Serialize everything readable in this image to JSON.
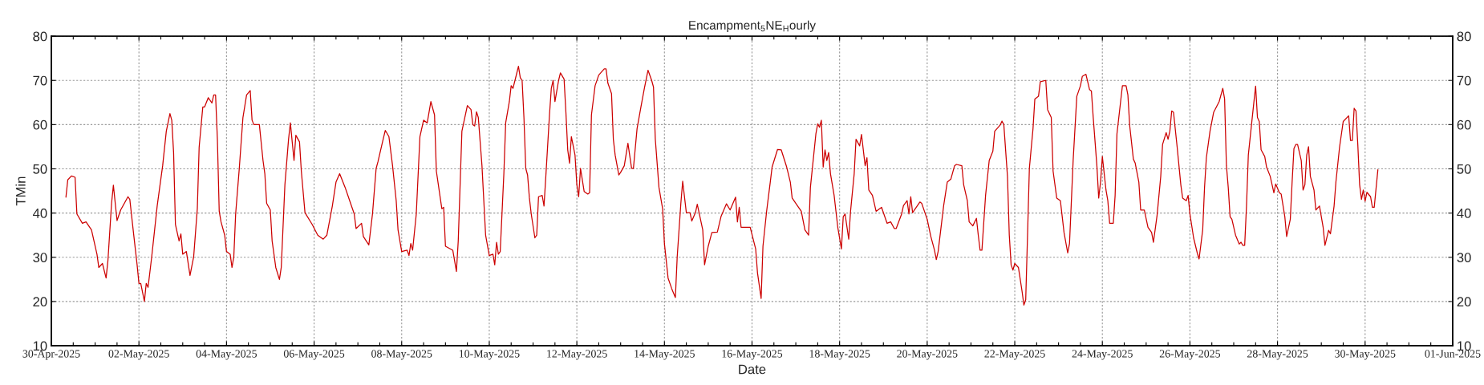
{
  "chart_data": {
    "type": "line",
    "title": "Encampment$_{5}$NE$_{H}$ourly",
    "xlabel": "Date",
    "ylabel": "TMin",
    "xlim": [
      "2025-04-30",
      "2025-06-01"
    ],
    "xticks": [
      {
        "value": "2025-04-30",
        "label": "30-Apr-2025"
      },
      {
        "value": "2025-04-30T12:00",
        "label": null
      },
      {
        "value": "2025-05-01",
        "label": null
      },
      {
        "value": "2025-05-01T12:00",
        "label": null
      },
      {
        "value": "2025-05-02",
        "label": "02-May-2025"
      },
      {
        "value": "2025-05-02T12:00",
        "label": null
      },
      {
        "value": "2025-05-03",
        "label": null
      },
      {
        "value": "2025-05-03T12:00",
        "label": null
      },
      {
        "value": "2025-05-04",
        "label": "04-May-2025"
      },
      {
        "value": "2025-05-04T12:00",
        "label": null
      },
      {
        "value": "2025-05-05",
        "label": null
      },
      {
        "value": "2025-05-05T12:00",
        "label": null
      },
      {
        "value": "2025-05-06",
        "label": "06-May-2025"
      },
      {
        "value": "2025-05-06T12:00",
        "label": null
      },
      {
        "value": "2025-05-07",
        "label": null
      },
      {
        "value": "2025-05-07T12:00",
        "label": null
      },
      {
        "value": "2025-05-08",
        "label": "08-May-2025"
      },
      {
        "value": "2025-05-08T12:00",
        "label": null
      },
      {
        "value": "2025-05-09",
        "label": null
      },
      {
        "value": "2025-05-09T12:00",
        "label": null
      },
      {
        "value": "2025-05-10",
        "label": "10-May-2025"
      },
      {
        "value": "2025-05-10T12:00",
        "label": null
      },
      {
        "value": "2025-05-11",
        "label": null
      },
      {
        "value": "2025-05-11T12:00",
        "label": null
      },
      {
        "value": "2025-05-12",
        "label": "12-May-2025"
      },
      {
        "value": "2025-05-12T12:00",
        "label": null
      },
      {
        "value": "2025-05-13",
        "label": null
      },
      {
        "value": "2025-05-13T12:00",
        "label": null
      },
      {
        "value": "2025-05-14",
        "label": "14-May-2025"
      },
      {
        "value": "2025-05-14T12:00",
        "label": null
      },
      {
        "value": "2025-05-15",
        "label": null
      },
      {
        "value": "2025-05-15T12:00",
        "label": null
      },
      {
        "value": "2025-05-16",
        "label": "16-May-2025"
      },
      {
        "value": "2025-05-16T12:00",
        "label": null
      },
      {
        "value": "2025-05-17",
        "label": null
      },
      {
        "value": "2025-05-17T12:00",
        "label": null
      },
      {
        "value": "2025-05-18",
        "label": "18-May-2025"
      },
      {
        "value": "2025-05-18T12:00",
        "label": null
      },
      {
        "value": "2025-05-19",
        "label": null
      },
      {
        "value": "2025-05-19T12:00",
        "label": null
      },
      {
        "value": "2025-05-20",
        "label": "20-May-2025"
      },
      {
        "value": "2025-05-20T12:00",
        "label": null
      },
      {
        "value": "2025-05-21",
        "label": null
      },
      {
        "value": "2025-05-21T12:00",
        "label": null
      },
      {
        "value": "2025-05-22",
        "label": "22-May-2025"
      },
      {
        "value": "2025-05-22T12:00",
        "label": null
      },
      {
        "value": "2025-05-23",
        "label": null
      },
      {
        "value": "2025-05-23T12:00",
        "label": null
      },
      {
        "value": "2025-05-24",
        "label": "24-May-2025"
      },
      {
        "value": "2025-05-24T12:00",
        "label": null
      },
      {
        "value": "2025-05-25",
        "label": null
      },
      {
        "value": "2025-05-25T12:00",
        "label": null
      },
      {
        "value": "2025-05-26",
        "label": "26-May-2025"
      },
      {
        "value": "2025-05-26T12:00",
        "label": null
      },
      {
        "value": "2025-05-27",
        "label": null
      },
      {
        "value": "2025-05-27T12:00",
        "label": null
      },
      {
        "value": "2025-05-28",
        "label": "28-May-2025"
      },
      {
        "value": "2025-05-28T12:00",
        "label": null
      },
      {
        "value": "2025-05-29",
        "label": null
      },
      {
        "value": "2025-05-29T12:00",
        "label": null
      },
      {
        "value": "2025-05-30",
        "label": "30-May-2025"
      },
      {
        "value": "2025-05-30T12:00",
        "label": null
      },
      {
        "value": "2025-05-31",
        "label": null
      },
      {
        "value": "2025-05-31T12:00",
        "label": null
      },
      {
        "value": "2025-06-01",
        "label": "01-Jun-2025"
      }
    ],
    "ylim": [
      10,
      80
    ],
    "yticks": [
      10,
      20,
      30,
      40,
      50,
      60,
      70,
      80
    ],
    "y2lim": [
      10,
      80
    ],
    "y2ticks": [
      10,
      20,
      30,
      40,
      50,
      60,
      70,
      80
    ],
    "grid": true,
    "marker": "none",
    "line_style": "solid",
    "x": [
      "2025-04-30T08:00",
      "2025-04-30T09:00",
      "2025-04-30T11:00",
      "2025-04-30T13:00",
      "2025-04-30T14:00",
      "2025-04-30T17:00",
      "2025-04-30T19:00",
      "2025-04-30T22:00",
      "2025-05-01T01:00",
      "2025-05-01T02:00",
      "2025-05-01T04:00",
      "2025-05-01T06:00",
      "2025-05-01T07:00",
      "2025-05-01T09:00",
      "2025-05-01T10:00",
      "2025-05-01T12:00",
      "2025-05-01T14:00",
      "2025-05-01T18:00",
      "2025-05-01T19:00",
      "2025-05-01T21:00",
      "2025-05-01T23:00",
      "2025-05-02T00:00",
      "2025-05-02T01:00",
      "2025-05-02T03:00",
      "2025-05-02T04:00",
      "2025-05-02T05:00",
      "2025-05-02T07:00",
      "2025-05-02T10:00",
      "2025-05-02T13:00",
      "2025-05-02T15:00",
      "2025-05-02T17:00",
      "2025-05-02T18:00",
      "2025-05-02T19:00",
      "2025-05-02T20:00",
      "2025-05-02T22:00",
      "2025-05-02T23:00",
      "2025-05-03T00:00",
      "2025-05-03T02:00",
      "2025-05-03T04:00",
      "2025-05-03T06:00",
      "2025-05-03T08:00",
      "2025-05-03T09:00",
      "2025-05-03T11:00",
      "2025-05-03T12:00",
      "2025-05-03T14:00",
      "2025-05-03T16:00",
      "2025-05-03T17:00",
      "2025-05-03T18:00",
      "2025-05-03T19:00",
      "2025-05-03T20:00",
      "2025-05-03T21:00",
      "2025-05-03T23:00",
      "2025-05-04T00:00",
      "2025-05-04T02:00",
      "2025-05-04T03:00",
      "2025-05-04T04:00",
      "2025-05-04T05:00",
      "2025-05-04T07:00",
      "2025-05-04T09:00",
      "2025-05-04T11:00",
      "2025-05-04T13:00",
      "2025-05-04T14:00",
      "2025-05-04T15:00",
      "2025-05-04T18:00",
      "2025-05-04T20:00",
      "2025-05-04T21:00",
      "2025-05-04T22:00",
      "2025-05-05T00:00",
      "2025-05-05T01:00",
      "2025-05-05T03:00",
      "2025-05-05T05:00",
      "2025-05-05T06:00",
      "2025-05-05T08:00",
      "2025-05-05T10:00",
      "2025-05-05T11:00",
      "2025-05-05T12:00",
      "2025-05-05T13:00",
      "2025-05-05T14:00",
      "2025-05-05T16:00",
      "2025-05-05T17:00",
      "2025-05-05T19:00",
      "2025-05-05T23:00",
      "2025-05-06T02:00",
      "2025-05-06T05:00",
      "2025-05-06T07:00",
      "2025-05-06T10:00",
      "2025-05-06T12:00",
      "2025-05-06T14:00",
      "2025-05-06T17:00",
      "2025-05-06T20:00",
      "2025-05-06T22:00",
      "2025-05-06T23:00",
      "2025-05-07T02:00",
      "2025-05-07T03:00",
      "2025-05-07T06:00",
      "2025-05-07T08:00",
      "2025-05-07T10:00",
      "2025-05-07T11:00",
      "2025-05-07T13:00",
      "2025-05-07T15:00",
      "2025-05-07T17:00",
      "2025-05-07T19:00",
      "2025-05-07T21:00",
      "2025-05-07T22:00",
      "2025-05-08T00:00",
      "2025-05-08T03:00",
      "2025-05-08T04:00",
      "2025-05-08T05:00",
      "2025-05-08T06:00",
      "2025-05-08T08:00",
      "2025-05-08T10:00",
      "2025-05-08T12:00",
      "2025-05-08T14:00",
      "2025-05-08T16:00",
      "2025-05-08T18:00",
      "2025-05-08T19:00",
      "2025-05-08T22:00",
      "2025-05-08T23:00",
      "2025-05-09T00:00",
      "2025-05-09T04:00",
      "2025-05-09T06:00",
      "2025-05-09T07:00",
      "2025-05-09T09:00",
      "2025-05-09T12:00",
      "2025-05-09T14:00",
      "2025-05-09T15:00",
      "2025-05-09T16:00",
      "2025-05-09T17:00",
      "2025-05-09T18:00",
      "2025-05-09T20:00",
      "2025-05-09T22:00",
      "2025-05-10T00:00",
      "2025-05-10T02:00",
      "2025-05-10T03:00",
      "2025-05-10T04:00",
      "2025-05-10T05:00",
      "2025-05-10T06:00",
      "2025-05-10T08:00",
      "2025-05-10T09:00",
      "2025-05-10T11:00",
      "2025-05-10T12:00",
      "2025-05-10T13:00",
      "2025-05-10T15:00",
      "2025-05-10T16:00",
      "2025-05-10T17:00",
      "2025-05-10T18:00",
      "2025-05-10T19:00",
      "2025-05-10T20:00",
      "2025-05-10T21:00",
      "2025-05-10T22:00",
      "2025-05-10T23:00",
      "2025-05-11T01:00",
      "2025-05-11T02:00",
      "2025-05-11T03:00",
      "2025-05-11T05:00",
      "2025-05-11T06:00",
      "2025-05-11T07:00",
      "2025-05-11T09:00",
      "2025-05-11T10:00",
      "2025-05-11T11:00",
      "2025-05-11T12:00",
      "2025-05-11T14:00",
      "2025-05-11T15:00",
      "2025-05-11T17:00",
      "2025-05-11T18:00",
      "2025-05-11T19:00",
      "2025-05-11T20:00",
      "2025-05-11T21:00",
      "2025-05-11T23:00",
      "2025-05-12T00:00",
      "2025-05-12T01:00",
      "2025-05-12T02:00",
      "2025-05-12T04:00",
      "2025-05-12T06:00",
      "2025-05-12T07:00",
      "2025-05-12T08:00",
      "2025-05-12T10:00",
      "2025-05-12T12:00",
      "2025-05-12T15:00",
      "2025-05-12T16:00",
      "2025-05-12T17:00",
      "2025-05-12T19:00",
      "2025-05-12T20:00",
      "2025-05-12T21:00",
      "2025-05-12T23:00",
      "2025-05-13T00:00",
      "2025-05-13T02:00",
      "2025-05-13T04:00",
      "2025-05-13T06:00",
      "2025-05-13T07:00",
      "2025-05-13T09:00",
      "2025-05-13T11:00",
      "2025-05-13T13:00",
      "2025-05-13T15:00",
      "2025-05-13T17:00",
      "2025-05-13T18:00",
      "2025-05-13T19:00",
      "2025-05-13T21:00",
      "2025-05-13T23:00",
      "2025-05-14T00:00",
      "2025-05-14T02:00",
      "2025-05-14T04:00",
      "2025-05-14T06:00",
      "2025-05-14T07:00",
      "2025-05-14T09:00",
      "2025-05-14T10:00",
      "2025-05-14T12:00",
      "2025-05-14T14:00",
      "2025-05-14T15:00",
      "2025-05-14T17:00",
      "2025-05-14T18:00",
      "2025-05-14T21:00",
      "2025-05-14T22:00",
      "2025-05-15T00:00",
      "2025-05-15T02:00",
      "2025-05-15T05:00",
      "2025-05-15T07:00",
      "2025-05-15T10:00",
      "2025-05-15T12:00",
      "2025-05-15T15:00",
      "2025-05-15T16:00",
      "2025-05-15T17:00",
      "2025-05-15T18:00",
      "2025-05-15T21:00",
      "2025-05-15T23:00",
      "2025-05-16T02:00",
      "2025-05-16T03:00",
      "2025-05-16T05:00",
      "2025-05-16T06:00",
      "2025-05-16T08:00",
      "2025-05-16T10:00",
      "2025-05-16T11:00",
      "2025-05-16T14:00",
      "2025-05-16T16:00",
      "2025-05-16T19:00",
      "2025-05-16T21:00",
      "2025-05-16T22:00",
      "2025-05-17T01:00",
      "2025-05-17T03:00",
      "2025-05-17T05:00",
      "2025-05-17T07:00",
      "2025-05-17T08:00",
      "2025-05-17T11:00",
      "2025-05-17T12:00",
      "2025-05-17T13:00",
      "2025-05-17T14:00",
      "2025-05-17T15:00",
      "2025-05-17T16:00",
      "2025-05-17T17:00",
      "2025-05-17T18:00",
      "2025-05-17T19:00",
      "2025-05-17T21:00",
      "2025-05-17T23:00",
      "2025-05-18T01:00",
      "2025-05-18T02:00",
      "2025-05-18T03:00",
      "2025-05-18T05:00",
      "2025-05-18T06:00",
      "2025-05-18T08:00",
      "2025-05-18T09:00",
      "2025-05-18T11:00",
      "2025-05-18T12:00",
      "2025-05-18T14:00",
      "2025-05-18T15:00",
      "2025-05-18T16:00",
      "2025-05-18T18:00",
      "2025-05-18T20:00",
      "2025-05-18T23:00",
      "2025-05-19T02:00",
      "2025-05-19T04:00",
      "2025-05-19T06:00",
      "2025-05-19T07:00",
      "2025-05-19T10:00",
      "2025-05-19T11:00",
      "2025-05-19T13:00",
      "2025-05-19T14:00",
      "2025-05-19T15:00",
      "2025-05-19T16:00",
      "2025-05-19T20:00",
      "2025-05-19T21:00",
      "2025-05-20T00:00",
      "2025-05-20T02:00",
      "2025-05-20T04:00",
      "2025-05-20T05:00",
      "2025-05-20T06:00",
      "2025-05-20T09:00",
      "2025-05-20T11:00",
      "2025-05-20T13:00",
      "2025-05-20T15:00",
      "2025-05-20T16:00",
      "2025-05-20T19:00",
      "2025-05-20T20:00",
      "2025-05-20T22:00",
      "2025-05-20T23:00",
      "2025-05-21T01:00",
      "2025-05-21T03:00",
      "2025-05-21T04:00",
      "2025-05-21T05:00",
      "2025-05-21T06:00",
      "2025-05-21T08:00",
      "2025-05-21T10:00",
      "2025-05-21T12:00",
      "2025-05-21T13:00",
      "2025-05-21T16:00",
      "2025-05-21T17:00",
      "2025-05-21T18:00",
      "2025-05-21T20:00",
      "2025-05-21T21:00",
      "2025-05-21T22:00",
      "2025-05-21T23:00",
      "2025-05-22T00:00",
      "2025-05-22T02:00",
      "2025-05-22T04:00",
      "2025-05-22T05:00",
      "2025-05-22T06:00",
      "2025-05-22T07:00",
      "2025-05-22T08:00",
      "2025-05-22T10:00",
      "2025-05-22T11:00",
      "2025-05-22T13:00",
      "2025-05-22T14:00",
      "2025-05-22T17:00",
      "2025-05-22T18:00",
      "2025-05-22T20:00",
      "2025-05-22T21:00",
      "2025-05-22T23:00",
      "2025-05-23T01:00",
      "2025-05-23T03:00",
      "2025-05-23T05:00",
      "2025-05-23T06:00",
      "2025-05-23T08:00",
      "2025-05-23T10:00",
      "2025-05-23T12:00",
      "2025-05-23T13:00",
      "2025-05-23T15:00",
      "2025-05-23T17:00",
      "2025-05-23T18:00",
      "2025-05-23T19:00",
      "2025-05-23T21:00",
      "2025-05-23T22:00",
      "2025-05-23T23:00",
      "2025-05-24T00:00",
      "2025-05-24T02:00",
      "2025-05-24T03:00",
      "2025-05-24T04:00",
      "2025-05-24T06:00",
      "2025-05-24T07:00",
      "2025-05-24T08:00",
      "2025-05-24T10:00",
      "2025-05-24T11:00",
      "2025-05-24T13:00",
      "2025-05-24T14:00",
      "2025-05-24T15:00",
      "2025-05-24T17:00",
      "2025-05-24T18:00",
      "2025-05-24T20:00",
      "2025-05-24T21:00",
      "2025-05-24T23:00",
      "2025-05-25T01:00",
      "2025-05-25T03:00",
      "2025-05-25T04:00",
      "2025-05-25T06:00",
      "2025-05-25T08:00",
      "2025-05-25T09:00",
      "2025-05-25T11:00",
      "2025-05-25T12:00",
      "2025-05-25T13:00",
      "2025-05-25T14:00",
      "2025-05-25T15:00",
      "2025-05-25T17:00",
      "2025-05-25T19:00",
      "2025-05-25T20:00",
      "2025-05-25T22:00",
      "2025-05-25T23:00",
      "2025-05-26T00:00",
      "2025-05-26T02:00",
      "2025-05-26T04:00",
      "2025-05-26T05:00",
      "2025-05-26T07:00",
      "2025-05-26T08:00",
      "2025-05-26T09:00",
      "2025-05-26T11:00",
      "2025-05-26T13:00",
      "2025-05-26T16:00",
      "2025-05-26T18:00",
      "2025-05-26T19:00",
      "2025-05-26T20:00",
      "2025-05-26T21:00",
      "2025-05-26T22:00",
      "2025-05-26T23:00",
      "2025-05-27T01:00",
      "2025-05-27T03:00",
      "2025-05-27T04:00",
      "2025-05-27T05:00",
      "2025-05-27T06:00",
      "2025-05-27T07:00",
      "2025-05-27T08:00",
      "2025-05-27T10:00",
      "2025-05-27T11:00",
      "2025-05-27T12:00",
      "2025-05-27T13:00",
      "2025-05-27T14:00",
      "2025-05-27T15:00",
      "2025-05-27T17:00",
      "2025-05-27T18:00",
      "2025-05-27T20:00",
      "2025-05-27T22:00",
      "2025-05-27T23:00",
      "2025-05-28T01:00",
      "2025-05-28T02:00",
      "2025-05-28T04:00",
      "2025-05-28T05:00",
      "2025-05-28T07:00",
      "2025-05-28T08:00",
      "2025-05-28T09:00",
      "2025-05-28T10:00",
      "2025-05-28T11:00",
      "2025-05-28T13:00",
      "2025-05-28T14:00",
      "2025-05-28T15:00",
      "2025-05-28T16:00",
      "2025-05-28T17:00",
      "2025-05-28T18:00",
      "2025-05-28T20:00",
      "2025-05-28T21:00",
      "2025-05-28T23:00",
      "2025-05-29T01:00",
      "2025-05-29T02:00",
      "2025-05-29T04:00",
      "2025-05-29T05:00",
      "2025-05-29T07:00",
      "2025-05-29T08:00",
      "2025-05-29T10:00",
      "2025-05-29T12:00",
      "2025-05-29T15:00",
      "2025-05-29T16:00",
      "2025-05-29T17:00",
      "2025-05-29T18:00",
      "2025-05-29T19:00",
      "2025-05-29T20:00",
      "2025-05-29T21:00",
      "2025-05-29T22:00",
      "2025-05-29T23:00",
      "2025-05-30T00:00",
      "2025-05-30T01:00",
      "2025-05-30T03:00",
      "2025-05-30T04:00",
      "2025-05-30T05:00",
      "2025-05-30T07:00"
    ],
    "series": [
      {
        "color": "#cc0000",
        "values": [
          43.6,
          47.5,
          48.4,
          48.1,
          39.8,
          37.7,
          38.0,
          36.2,
          30.7,
          27.7,
          28.6,
          25.3,
          29.2,
          42.2,
          46.3,
          38.3,
          40.7,
          43.7,
          43.1,
          35.6,
          28.3,
          24.1,
          24.1,
          20.0,
          24.1,
          23.2,
          30.1,
          41.6,
          50.7,
          58.5,
          62.5,
          61.0,
          53.7,
          37.4,
          33.7,
          35.3,
          30.7,
          31.3,
          25.9,
          30.1,
          41.0,
          54.9,
          64.0,
          64.0,
          66.1,
          64.9,
          66.7,
          66.7,
          56.7,
          40.4,
          38.0,
          35.0,
          31.3,
          30.7,
          27.7,
          30.1,
          39.8,
          50.1,
          61.6,
          66.7,
          67.7,
          61.0,
          60.0,
          60.0,
          51.9,
          48.9,
          42.2,
          40.7,
          33.7,
          27.7,
          25.0,
          27.7,
          46.4,
          56.7,
          60.4,
          56.1,
          51.9,
          57.6,
          56.1,
          49.5,
          40.1,
          37.4,
          35.0,
          34.1,
          35.0,
          41.6,
          47.0,
          48.9,
          45.8,
          42.2,
          39.8,
          36.5,
          37.7,
          34.7,
          32.8,
          39.8,
          50.1,
          51.6,
          55.2,
          58.7,
          57.3,
          50.7,
          42.8,
          36.2,
          31.3,
          31.6,
          30.4,
          33.1,
          31.6,
          39.8,
          57.3,
          61.0,
          60.4,
          65.2,
          62.2,
          49.5,
          41.0,
          41.3,
          32.5,
          31.6,
          26.8,
          33.7,
          58.5,
          64.3,
          63.4,
          60.0,
          59.7,
          62.9,
          61.6,
          50.7,
          35.0,
          30.4,
          30.7,
          28.3,
          33.4,
          30.7,
          31.3,
          48.9,
          60.4,
          65.2,
          68.8,
          68.2,
          71.5,
          73.2,
          70.6,
          70.0,
          61.6,
          50.1,
          48.6,
          43.4,
          39.8,
          34.4,
          35.0,
          43.7,
          44.0,
          41.6,
          48.3,
          62.2,
          68.2,
          70.0,
          65.2,
          70.0,
          71.7,
          70.3,
          62.8,
          54.3,
          51.3,
          57.3,
          53.1,
          46.4,
          43.7,
          50.1,
          44.9,
          44.3,
          44.6,
          62.2,
          68.8,
          71.2,
          72.6,
          72.6,
          69.4,
          67.0,
          56.7,
          53.1,
          48.6,
          49.2,
          50.7,
          55.8,
          50.1,
          50.1,
          59.1,
          63.7,
          68.2,
          72.3,
          70.0,
          68.5,
          56.7,
          45.8,
          41.0,
          33.1,
          25.3,
          22.9,
          20.9,
          30.1,
          42.2,
          47.2,
          40.1,
          40.1,
          38.2,
          40.1,
          42.0,
          36.2,
          28.3,
          32.5,
          35.6,
          35.7,
          39.2,
          42.1,
          40.7,
          43.6,
          38.0,
          41.3,
          36.8,
          36.8,
          36.8,
          31.9,
          26.5,
          20.7,
          32.5,
          40.4,
          47.0,
          50.4,
          54.4,
          54.3,
          50.4,
          47.0,
          43.4,
          41.6,
          40.4,
          36.2,
          35.0,
          45.8,
          57.9,
          60.2,
          59.4,
          61.0,
          50.4,
          54.3,
          51.9,
          53.7,
          48.9,
          44.0,
          36.8,
          31.9,
          39.2,
          39.8,
          34.1,
          40.4,
          48.9,
          56.7,
          55.2,
          57.8,
          50.7,
          52.5,
          45.2,
          44.0,
          40.4,
          41.3,
          37.7,
          38.0,
          36.5,
          36.5,
          39.8,
          41.7,
          42.8,
          39.8,
          43.7,
          40.1,
          42.5,
          42.2,
          38.6,
          34.7,
          31.6,
          29.5,
          31.3,
          41.6,
          47.0,
          47.7,
          50.7,
          51.0,
          50.7,
          46.4,
          42.8,
          38.0,
          37.1,
          38.8,
          35.0,
          31.6,
          31.6,
          44.0,
          51.9,
          54.0,
          58.5,
          59.9,
          60.8,
          60.0,
          48.3,
          35.0,
          28.3,
          27.1,
          28.6,
          27.7,
          22.3,
          19.2,
          20.4,
          35.0,
          50.1,
          59.1,
          65.8,
          66.4,
          69.7,
          70.0,
          63.4,
          61.6,
          49.5,
          43.4,
          42.8,
          35.6,
          31.0,
          33.1,
          51.9,
          66.4,
          68.8,
          70.9,
          71.4,
          67.9,
          67.6,
          61.6,
          50.7,
          43.4,
          47.0,
          52.8,
          45.2,
          42.8,
          37.7,
          37.7,
          44.0,
          57.9,
          65.2,
          68.8,
          68.8,
          66.7,
          59.7,
          52.2,
          51.3,
          47.0,
          40.7,
          40.7,
          36.8,
          35.6,
          33.4,
          39.5,
          48.3,
          55.5,
          58.2,
          56.7,
          58.5,
          63.1,
          62.8,
          54.9,
          46.4,
          43.4,
          42.8,
          44.0,
          39.8,
          34.4,
          31.0,
          29.6,
          36.2,
          45.8,
          52.5,
          58.5,
          62.8,
          65.2,
          68.2,
          65.8,
          50.7,
          45.8,
          39.2,
          38.6,
          35.0,
          33.0,
          33.4,
          32.7,
          32.7,
          41.6,
          53.1,
          61.0,
          64.9,
          68.7,
          61.6,
          60.7,
          54.3,
          52.8,
          50.4,
          48.3,
          44.6,
          46.6,
          44.6,
          44.3,
          39.2,
          34.7,
          38.6,
          47.0,
          54.6,
          55.5,
          55.5,
          51.9,
          45.2,
          46.4,
          53.1,
          55.0,
          48.3,
          45.2,
          40.7,
          41.6,
          36.8,
          32.7,
          36.1,
          35.3,
          41.6,
          47.0,
          54.9,
          60.7,
          62.0,
          56.4,
          56.4,
          63.7,
          63.1,
          55.5,
          46.4,
          43.1,
          45.2,
          42.7,
          44.7,
          43.7,
          41.3,
          41.3,
          49.8
        ]
      }
    ]
  }
}
